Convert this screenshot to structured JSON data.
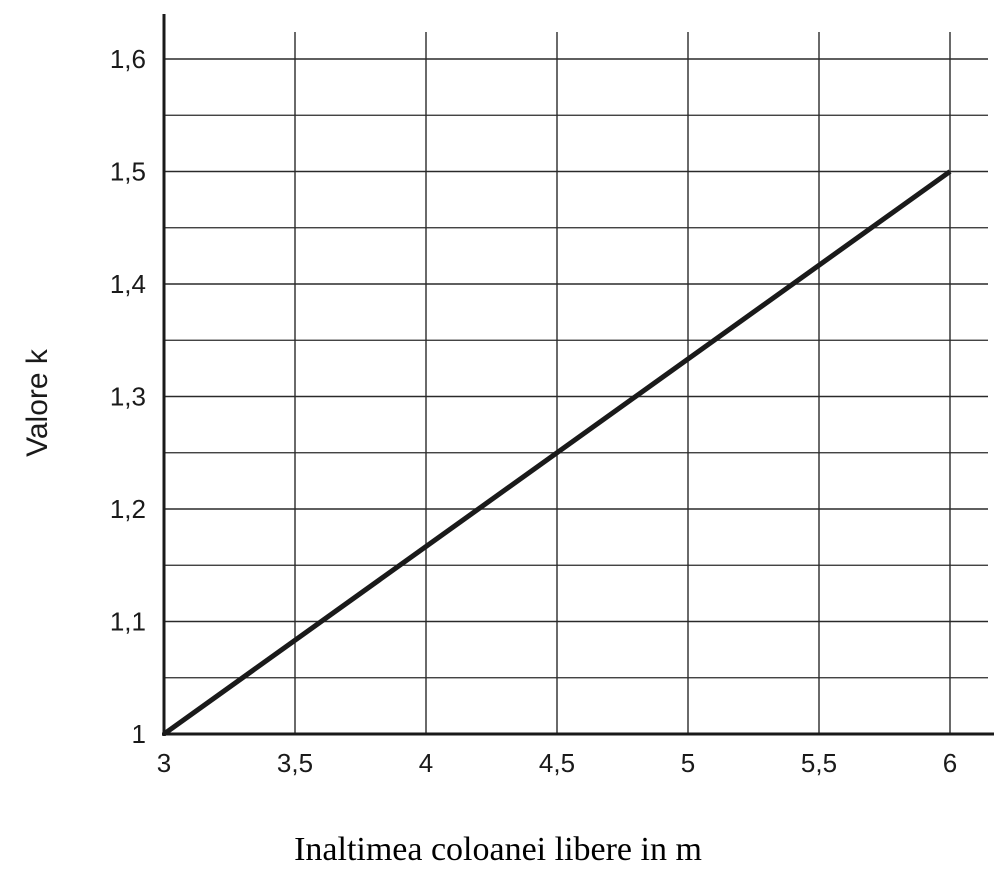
{
  "chart_data": {
    "type": "line",
    "title": "",
    "xlabel": "Inaltimea coloanei libere in m",
    "ylabel": "Valore k",
    "xlim": [
      3,
      6.15
    ],
    "ylim": [
      1,
      1.63
    ],
    "x_ticks": [
      3,
      3.5,
      4,
      4.5,
      5,
      5.5,
      6
    ],
    "x_tick_labels": [
      "3",
      "3,5",
      "4",
      "4,5",
      "5",
      "5,5",
      "6"
    ],
    "y_ticks": [
      1,
      1.1,
      1.2,
      1.3,
      1.4,
      1.5,
      1.6
    ],
    "y_tick_labels": [
      "1",
      "1,1",
      "1,2",
      "1,3",
      "1,4",
      "1,5",
      "1,6"
    ],
    "y_minor_gridlines": [
      1.05,
      1.15,
      1.25,
      1.35,
      1.45,
      1.55
    ],
    "grid": true,
    "legend": "none",
    "series": [
      {
        "x": [
          3,
          6
        ],
        "y": [
          1.0,
          1.5
        ],
        "color": "#1a1a1a"
      }
    ]
  }
}
